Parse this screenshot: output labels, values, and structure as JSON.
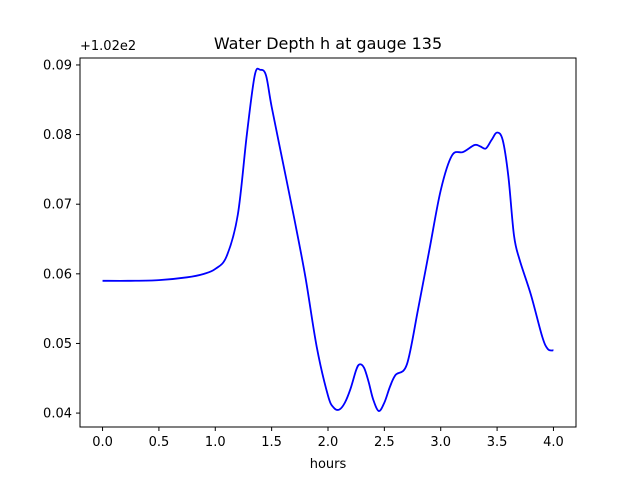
{
  "chart_data": {
    "type": "line",
    "title": "Water Depth h at gauge 135",
    "xlabel": "hours",
    "ylabel": "",
    "offset_label": "+1.02e2",
    "xlim": [
      -0.2,
      4.2
    ],
    "ylim": [
      0.038,
      0.091
    ],
    "xticks": [
      0.0,
      0.5,
      1.0,
      1.5,
      2.0,
      2.5,
      3.0,
      3.5,
      4.0
    ],
    "xtick_labels": [
      "0.0",
      "0.5",
      "1.0",
      "1.5",
      "2.0",
      "2.5",
      "3.0",
      "3.5",
      "4.0"
    ],
    "yticks": [
      0.04,
      0.05,
      0.06,
      0.07,
      0.08,
      0.09
    ],
    "ytick_labels": [
      "0.04",
      "0.05",
      "0.06",
      "0.07",
      "0.08",
      "0.09"
    ],
    "grid": false,
    "series": [
      {
        "color": "#0000ff",
        "x": [
          0.0,
          0.25,
          0.5,
          0.75,
          0.9,
          1.0,
          1.1,
          1.2,
          1.28,
          1.35,
          1.4,
          1.45,
          1.5,
          1.6,
          1.7,
          1.8,
          1.9,
          2.0,
          2.05,
          2.1,
          2.15,
          2.2,
          2.25,
          2.28,
          2.32,
          2.36,
          2.4,
          2.45,
          2.5,
          2.55,
          2.6,
          2.7,
          2.8,
          2.9,
          3.0,
          3.1,
          3.2,
          3.3,
          3.35,
          3.4,
          3.45,
          3.5,
          3.55,
          3.6,
          3.65,
          3.7,
          3.8,
          3.9,
          3.95,
          4.0
        ],
        "y": [
          0.059,
          0.059,
          0.0591,
          0.0595,
          0.06,
          0.0607,
          0.0625,
          0.0685,
          0.08,
          0.0885,
          0.0893,
          0.0885,
          0.084,
          0.076,
          0.068,
          0.0595,
          0.0495,
          0.0425,
          0.0408,
          0.0405,
          0.0415,
          0.0435,
          0.0462,
          0.047,
          0.0465,
          0.0445,
          0.042,
          0.0403,
          0.0415,
          0.0438,
          0.0455,
          0.047,
          0.055,
          0.0635,
          0.072,
          0.077,
          0.0775,
          0.0785,
          0.0783,
          0.078,
          0.0792,
          0.0803,
          0.0792,
          0.074,
          0.0655,
          0.062,
          0.057,
          0.051,
          0.0492,
          0.049
        ]
      }
    ]
  }
}
